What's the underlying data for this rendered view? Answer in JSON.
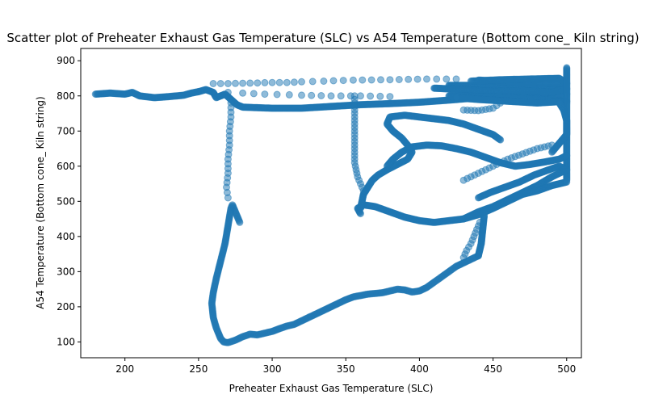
{
  "chart_data": {
    "type": "scatter",
    "title": "Scatter plot of Preheater Exhaust Gas Temperature (SLC) vs A54 Temperature (Bottom cone_ Kiln string)",
    "xlabel": "Preheater Exhaust Gas Temperature (SLC)",
    "ylabel": "A54 Temperature (Bottom cone_ Kiln string)",
    "xlim": [
      170,
      510
    ],
    "ylim": [
      55,
      935
    ],
    "xticks": [
      200,
      250,
      300,
      350,
      400,
      450,
      500
    ],
    "yticks": [
      100,
      200,
      300,
      400,
      500,
      600,
      700,
      800,
      900
    ],
    "grid": false,
    "marker_color": "#1f77b4",
    "marker_alpha": 0.5,
    "paths": [
      {
        "points": [
          [
            180,
            805
          ],
          [
            190,
            808
          ],
          [
            200,
            805
          ],
          [
            205,
            810
          ],
          [
            210,
            800
          ],
          [
            220,
            795
          ],
          [
            230,
            798
          ],
          [
            240,
            802
          ],
          [
            245,
            808
          ],
          [
            250,
            812
          ]
        ],
        "step": 1
      },
      {
        "points": [
          [
            250,
            812
          ],
          [
            255,
            818
          ],
          [
            260,
            810
          ],
          [
            262,
            795
          ],
          [
            265,
            800
          ],
          [
            268,
            805
          ],
          [
            272,
            790
          ],
          [
            276,
            775
          ],
          [
            280,
            768
          ],
          [
            300,
            765
          ],
          [
            320,
            765
          ],
          [
            340,
            770
          ],
          [
            360,
            775
          ],
          [
            380,
            778
          ],
          [
            400,
            782
          ],
          [
            420,
            788
          ],
          [
            440,
            795
          ],
          [
            460,
            800
          ],
          [
            480,
            805
          ],
          [
            500,
            805
          ]
        ],
        "step": 1
      },
      {
        "points": [
          [
            420,
            830
          ],
          [
            440,
            830
          ],
          [
            460,
            828
          ],
          [
            480,
            825
          ],
          [
            500,
            820
          ],
          [
            490,
            810
          ],
          [
            470,
            815
          ],
          [
            450,
            812
          ],
          [
            430,
            818
          ],
          [
            410,
            822
          ]
        ],
        "step": 0.7
      },
      {
        "points": [
          [
            420,
            800
          ],
          [
            440,
            798
          ],
          [
            460,
            795
          ],
          [
            480,
            790
          ],
          [
            500,
            785
          ],
          [
            480,
            780
          ],
          [
            460,
            785
          ],
          [
            440,
            790
          ],
          [
            425,
            795
          ]
        ],
        "step": 0.7
      },
      {
        "points": [
          [
            440,
            845
          ],
          [
            460,
            840
          ],
          [
            480,
            838
          ],
          [
            500,
            835
          ],
          [
            495,
            850
          ],
          [
            475,
            848
          ],
          [
            455,
            846
          ],
          [
            435,
            842
          ]
        ],
        "step": 1
      },
      {
        "points": [
          [
            500,
            880
          ],
          [
            500,
            780
          ],
          [
            500,
            700
          ],
          [
            500,
            640
          ],
          [
            500,
            560
          ]
        ],
        "step": 1
      },
      {
        "points": [
          [
            278,
            440
          ],
          [
            276,
            460
          ],
          [
            273,
            490
          ],
          [
            272,
            480
          ],
          [
            270,
            430
          ],
          [
            268,
            380
          ],
          [
            265,
            330
          ],
          [
            262,
            280
          ],
          [
            260,
            240
          ],
          [
            259,
            210
          ],
          [
            260,
            170
          ],
          [
            262,
            140
          ],
          [
            265,
            110
          ],
          [
            267,
            100
          ],
          [
            270,
            98
          ],
          [
            275,
            105
          ],
          [
            280,
            115
          ],
          [
            285,
            122
          ],
          [
            290,
            120
          ],
          [
            295,
            125
          ],
          [
            300,
            130
          ],
          [
            305,
            138
          ],
          [
            310,
            145
          ],
          [
            315,
            150
          ],
          [
            320,
            160
          ],
          [
            325,
            170
          ],
          [
            330,
            180
          ],
          [
            335,
            190
          ],
          [
            340,
            200
          ],
          [
            345,
            210
          ],
          [
            350,
            220
          ],
          [
            355,
            228
          ],
          [
            360,
            232
          ],
          [
            365,
            236
          ],
          [
            370,
            238
          ],
          [
            375,
            240
          ],
          [
            380,
            245
          ],
          [
            385,
            250
          ],
          [
            390,
            248
          ],
          [
            395,
            242
          ],
          [
            400,
            245
          ],
          [
            405,
            255
          ],
          [
            410,
            270
          ],
          [
            415,
            285
          ],
          [
            420,
            300
          ],
          [
            425,
            315
          ],
          [
            430,
            325
          ],
          [
            435,
            335
          ],
          [
            440,
            345
          ]
        ],
        "step": 1.5
      },
      {
        "points": [
          [
            440,
            345
          ],
          [
            442,
            380
          ],
          [
            443,
            420
          ],
          [
            444,
            460
          ]
        ],
        "step": 1
      },
      {
        "points": [
          [
            430,
            450
          ],
          [
            440,
            470
          ],
          [
            450,
            485
          ],
          [
            460,
            505
          ],
          [
            470,
            525
          ],
          [
            480,
            545
          ],
          [
            490,
            570
          ],
          [
            500,
            590
          ],
          [
            495,
            600
          ],
          [
            488,
            590
          ],
          [
            478,
            575
          ],
          [
            468,
            555
          ],
          [
            458,
            540
          ],
          [
            448,
            525
          ],
          [
            440,
            510
          ]
        ],
        "step": 1
      },
      {
        "points": [
          [
            360,
            465
          ],
          [
            358,
            480
          ],
          [
            362,
            490
          ],
          [
            370,
            485
          ],
          [
            380,
            470
          ],
          [
            390,
            455
          ],
          [
            400,
            445
          ],
          [
            410,
            440
          ],
          [
            420,
            445
          ],
          [
            430,
            450
          ],
          [
            440,
            462
          ],
          [
            450,
            480
          ],
          [
            460,
            500
          ],
          [
            470,
            520
          ],
          [
            480,
            530
          ],
          [
            490,
            545
          ],
          [
            500,
            555
          ]
        ],
        "step": 1
      },
      {
        "points": [
          [
            360,
            480
          ],
          [
            362,
            520
          ],
          [
            365,
            540
          ],
          [
            368,
            560
          ],
          [
            372,
            575
          ],
          [
            378,
            590
          ],
          [
            385,
            605
          ],
          [
            392,
            620
          ],
          [
            395,
            640
          ],
          [
            392,
            660
          ],
          [
            388,
            680
          ],
          [
            382,
            700
          ],
          [
            378,
            720
          ],
          [
            380,
            740
          ],
          [
            390,
            745
          ],
          [
            400,
            740
          ],
          [
            410,
            735
          ],
          [
            420,
            730
          ],
          [
            430,
            720
          ],
          [
            440,
            705
          ],
          [
            450,
            690
          ],
          [
            455,
            675
          ]
        ],
        "step": 1
      },
      {
        "points": [
          [
            378,
            600
          ],
          [
            382,
            620
          ],
          [
            388,
            640
          ],
          [
            395,
            655
          ],
          [
            405,
            660
          ],
          [
            415,
            658
          ],
          [
            425,
            650
          ],
          [
            435,
            640
          ],
          [
            445,
            625
          ],
          [
            455,
            610
          ],
          [
            465,
            600
          ],
          [
            475,
            605
          ],
          [
            485,
            612
          ],
          [
            495,
            620
          ],
          [
            500,
            630
          ]
        ],
        "step": 1
      },
      {
        "points": [
          [
            490,
            640
          ],
          [
            495,
            665
          ],
          [
            500,
            690
          ],
          [
            500,
            730
          ],
          [
            498,
            760
          ],
          [
            495,
            780
          ]
        ],
        "step": 1
      },
      {
        "points": [
          [
            356,
            800
          ],
          [
            356,
            760
          ],
          [
            356,
            720
          ],
          [
            356,
            680
          ],
          [
            356,
            640
          ],
          [
            356,
            610
          ],
          [
            357,
            590
          ],
          [
            358,
            570
          ],
          [
            360,
            550
          ],
          [
            362,
            530
          ]
        ],
        "step": 4
      },
      {
        "points": [
          [
            272,
            780
          ],
          [
            272,
            740
          ],
          [
            271,
            700
          ],
          [
            271,
            660
          ],
          [
            270,
            620
          ],
          [
            270,
            580
          ],
          [
            269,
            540
          ],
          [
            270,
            510
          ]
        ],
        "step": 6
      },
      {
        "points": [
          [
            260,
            835
          ],
          [
            270,
            835
          ],
          [
            280,
            836
          ],
          [
            290,
            837
          ],
          [
            300,
            838
          ],
          [
            310,
            838
          ],
          [
            320,
            840
          ],
          [
            335,
            842
          ],
          [
            355,
            845
          ],
          [
            380,
            846
          ],
          [
            405,
            848
          ],
          [
            425,
            848
          ]
        ],
        "step": 12
      },
      {
        "points": [
          [
            270,
            810
          ],
          [
            280,
            808
          ],
          [
            295,
            805
          ],
          [
            320,
            802
          ],
          [
            340,
            800
          ],
          [
            360,
            800
          ],
          [
            380,
            798
          ]
        ],
        "step": 14
      },
      {
        "points": [
          [
            430,
            760
          ],
          [
            440,
            758
          ],
          [
            450,
            765
          ],
          [
            455,
            780
          ]
        ],
        "step": 5
      },
      {
        "points": [
          [
            430,
            560
          ],
          [
            440,
            580
          ],
          [
            450,
            600
          ],
          [
            460,
            620
          ],
          [
            470,
            635
          ],
          [
            480,
            650
          ],
          [
            490,
            660
          ]
        ],
        "step": 5
      },
      {
        "points": [
          [
            430,
            340
          ],
          [
            432,
            360
          ],
          [
            435,
            380
          ],
          [
            437,
            400
          ],
          [
            439,
            420
          ],
          [
            441,
            440
          ]
        ],
        "step": 5
      }
    ]
  }
}
